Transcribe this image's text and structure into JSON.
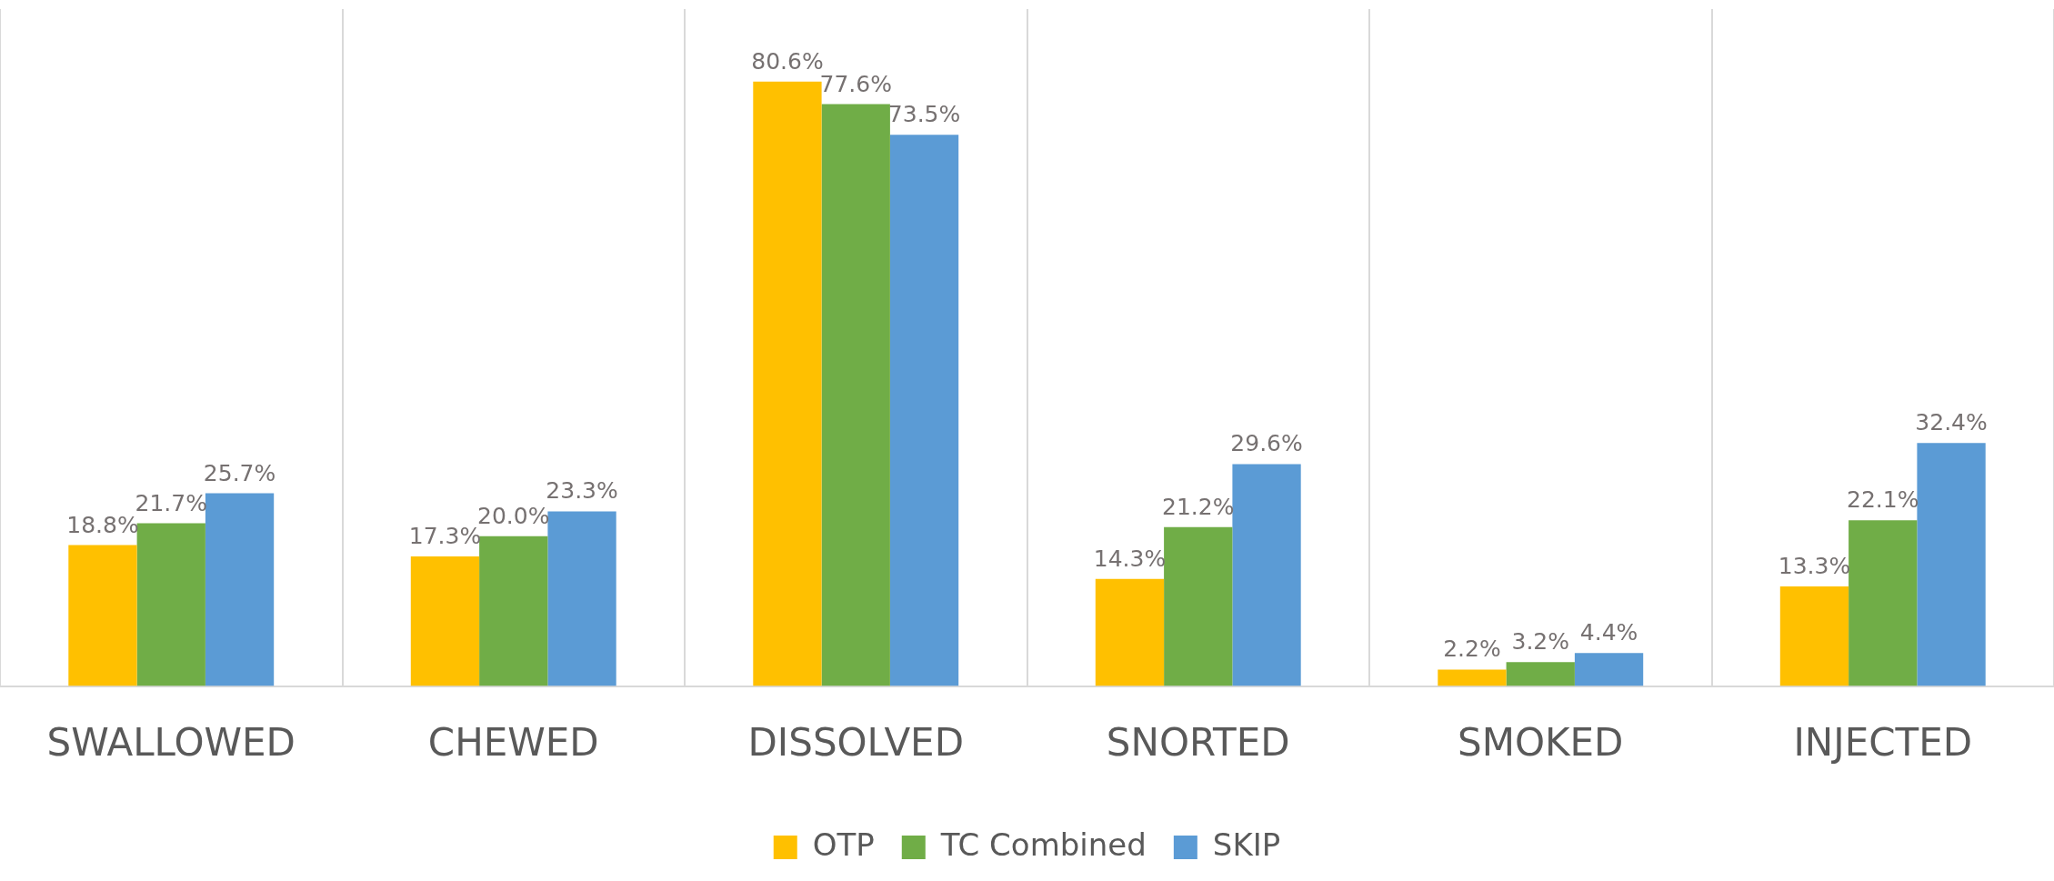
{
  "chart_data": {
    "type": "bar",
    "categories": [
      "SWALLOWED",
      "CHEWED",
      "DISSOLVED",
      "SNORTED",
      "SMOKED",
      "INJECTED"
    ],
    "series": [
      {
        "name": "OTP",
        "color": "#ffc000",
        "values": [
          18.8,
          17.3,
          80.6,
          14.3,
          2.2,
          13.3
        ],
        "value_labels": [
          "18.8%",
          "17.3%",
          "80.6%",
          "14.3%",
          "2.2%",
          "13.3%"
        ]
      },
      {
        "name": "TC Combined",
        "color": "#70ad47",
        "values": [
          21.7,
          20.0,
          77.6,
          21.2,
          3.2,
          22.1
        ],
        "value_labels": [
          "21.7%",
          "20.0%",
          "77.6%",
          "21.2%",
          "3.2%",
          "22.1%"
        ]
      },
      {
        "name": "SKIP",
        "color": "#5b9bd5",
        "values": [
          25.7,
          23.3,
          73.5,
          29.6,
          4.4,
          32.4
        ],
        "value_labels": [
          "25.7%",
          "23.3%",
          "73.5%",
          "29.6%",
          "4.4%",
          "32.4%"
        ]
      }
    ],
    "tick_labels": "x",
    "grid": "x",
    "legend": "bottom"
  }
}
